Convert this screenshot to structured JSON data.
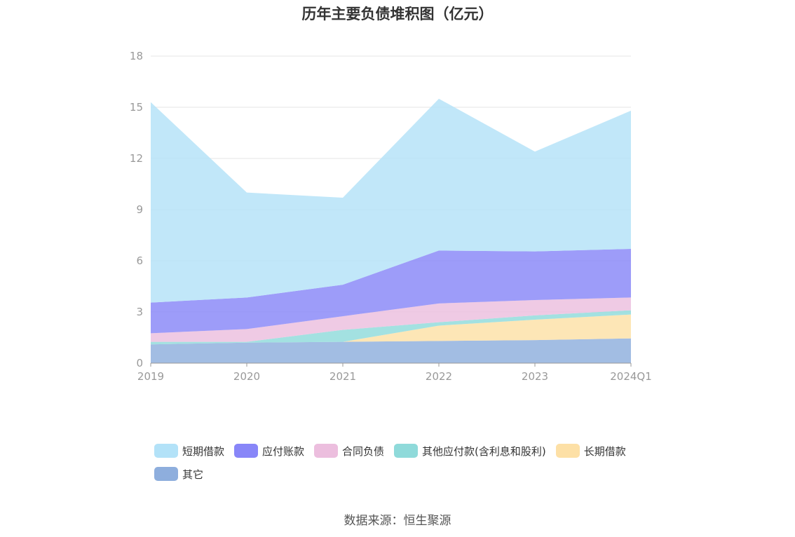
{
  "chart_data": {
    "type": "area",
    "stacked": true,
    "title": "历年主要负债堆积图（亿元）",
    "x": [
      "2019",
      "2020",
      "2021",
      "2022",
      "2023",
      "2024Q1"
    ],
    "ylim": [
      0,
      18
    ],
    "yticks": [
      0,
      3,
      6,
      9,
      12,
      15,
      18
    ],
    "grid": true,
    "legend_position": "bottom",
    "series": [
      {
        "name": "其它",
        "color": "#8eaedd",
        "values": [
          1.1,
          1.2,
          1.25,
          1.3,
          1.35,
          1.45
        ]
      },
      {
        "name": "长期借款",
        "color": "#fde0a6",
        "values": [
          0.0,
          0.0,
          0.0,
          0.9,
          1.2,
          1.4
        ]
      },
      {
        "name": "其他应付款(含利息和股利)",
        "color": "#8fdada",
        "values": [
          0.15,
          0.05,
          0.7,
          0.2,
          0.25,
          0.25
        ]
      },
      {
        "name": "合同负债",
        "color": "#ecbede",
        "values": [
          0.5,
          0.75,
          0.8,
          1.1,
          0.9,
          0.75
        ]
      },
      {
        "name": "应付账款",
        "color": "#8886f8",
        "values": [
          1.8,
          1.85,
          1.85,
          3.1,
          2.85,
          2.85
        ]
      },
      {
        "name": "短期借款",
        "color": "#b3e2f8",
        "values": [
          11.75,
          6.15,
          5.1,
          8.9,
          5.85,
          8.1
        ]
      }
    ]
  },
  "legend_order": [
    "短期借款",
    "应付账款",
    "合同负债",
    "其他应付款(含利息和股利)",
    "长期借款",
    "其它"
  ],
  "source": "数据来源：恒生聚源"
}
